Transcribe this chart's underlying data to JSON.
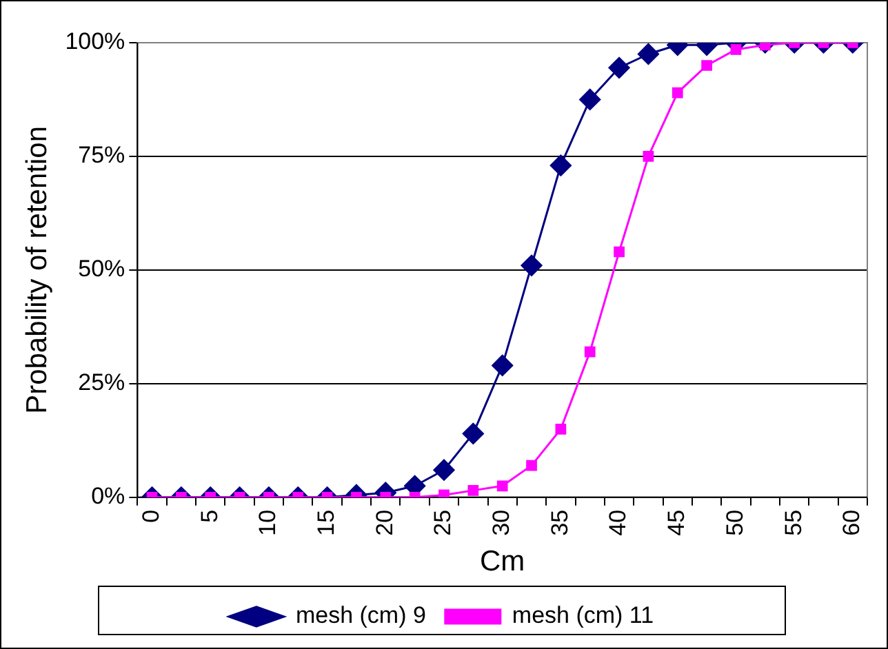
{
  "chart_data": {
    "type": "line",
    "xlabel": "Cm",
    "ylabel": "Probability of retention",
    "categories": [
      "0",
      null,
      "5",
      null,
      "10",
      null,
      "15",
      null,
      "20",
      null,
      "25",
      null,
      "30",
      null,
      "35",
      null,
      "40",
      null,
      "45",
      null,
      "50",
      null,
      "55",
      null,
      "60"
    ],
    "series": [
      {
        "name": "mesh (cm) 9",
        "color": "#000080",
        "marker": "diamond",
        "values": [
          0,
          0,
          0,
          0,
          0,
          0,
          0,
          0.5,
          1,
          2.5,
          6,
          14,
          29,
          51,
          73,
          87.5,
          94.5,
          97.5,
          99.5,
          99.5,
          100,
          100,
          100,
          100,
          100
        ]
      },
      {
        "name": "mesh (cm) 11",
        "color": "#ff00ff",
        "marker": "square",
        "values": [
          0,
          0,
          0,
          0,
          0,
          0,
          0,
          0,
          0,
          0,
          0.5,
          1.5,
          2.5,
          7,
          15,
          32,
          54,
          75,
          89,
          95,
          98.5,
          99.5,
          100,
          100,
          100
        ]
      }
    ],
    "ylim": [
      0,
      100
    ],
    "yticks": [
      {
        "value": 0,
        "label": "0%"
      },
      {
        "value": 25,
        "label": "25%"
      },
      {
        "value": 50,
        "label": "50%"
      },
      {
        "value": 75,
        "label": "75%"
      },
      {
        "value": 100,
        "label": "100%"
      }
    ],
    "grid": "y",
    "legend": "bottom",
    "line_style": "solid"
  }
}
